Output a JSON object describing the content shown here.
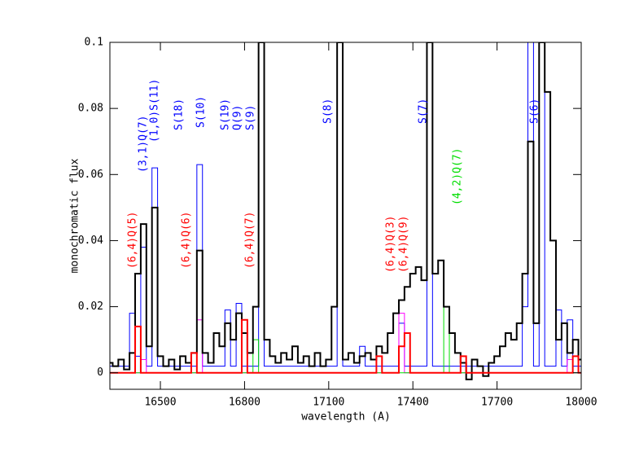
{
  "chart_data": {
    "type": "line",
    "xlabel": "wavelength (A)",
    "ylabel": "monochromatic flux",
    "xlim": [
      16320,
      18000
    ],
    "ylim": [
      -0.005,
      0.1
    ],
    "xticks": [
      16500,
      16800,
      17100,
      17400,
      17700,
      18000
    ],
    "yticks": [
      0,
      0.02,
      0.04,
      0.06,
      0.08,
      0.1
    ],
    "x": [
      16320,
      16340,
      16360,
      16380,
      16400,
      16420,
      16440,
      16460,
      16480,
      16500,
      16520,
      16540,
      16560,
      16580,
      16600,
      16620,
      16640,
      16660,
      16680,
      16700,
      16720,
      16740,
      16760,
      16780,
      16800,
      16820,
      16840,
      16860,
      16880,
      16900,
      16920,
      16940,
      16960,
      16980,
      17000,
      17020,
      17040,
      17060,
      17080,
      17100,
      17120,
      17140,
      17160,
      17180,
      17200,
      17220,
      17240,
      17260,
      17280,
      17300,
      17320,
      17340,
      17360,
      17380,
      17400,
      17420,
      17440,
      17460,
      17480,
      17500,
      17520,
      17540,
      17560,
      17580,
      17600,
      17620,
      17640,
      17660,
      17680,
      17700,
      17720,
      17740,
      17760,
      17780,
      17800,
      17820,
      17840,
      17860,
      17880,
      17900,
      17920,
      17940,
      17960,
      17980,
      18000
    ],
    "series": [
      {
        "color": "#0000ff",
        "values": [
          0.002,
          0.002,
          0.002,
          0.002,
          0.018,
          0.005,
          0.038,
          0.002,
          0.062,
          0.002,
          0.002,
          0.002,
          0.002,
          0.002,
          0.002,
          0.002,
          0.063,
          0.002,
          0.002,
          0.002,
          0.002,
          0.019,
          0.002,
          0.021,
          0.002,
          0.002,
          0.002,
          0.1,
          0.002,
          0.002,
          0.002,
          0.002,
          0.002,
          0.002,
          0.002,
          0.002,
          0.002,
          0.002,
          0.002,
          0.002,
          0.002,
          0.1,
          0.002,
          0.002,
          0.002,
          0.008,
          0.002,
          0.002,
          0.002,
          0.002,
          0.002,
          0.002,
          0.015,
          0.002,
          0.002,
          0.002,
          0.002,
          0.1,
          0.002,
          0.002,
          0.002,
          0.002,
          0.002,
          0.002,
          0.002,
          0.002,
          0.002,
          0.002,
          0.002,
          0.002,
          0.002,
          0.002,
          0.002,
          0.002,
          0.02,
          0.1,
          0.002,
          0.1,
          0.002,
          0.002,
          0.019,
          0.002,
          0.016,
          0.002,
          0.002
        ]
      },
      {
        "color": "#ff00ff",
        "values": [
          0,
          0,
          0,
          0,
          0,
          0,
          0.004,
          0,
          0,
          0,
          0,
          0,
          0,
          0,
          0,
          0,
          0.016,
          0,
          0,
          0,
          0,
          0,
          0,
          0,
          0,
          0,
          0,
          0,
          0,
          0,
          0,
          0,
          0,
          0,
          0,
          0,
          0,
          0,
          0,
          0,
          0,
          0,
          0,
          0,
          0,
          0,
          0,
          0,
          0,
          0,
          0,
          0,
          0.018,
          0,
          0,
          0,
          0,
          0,
          0,
          0,
          0,
          0,
          0,
          0,
          0,
          0,
          0,
          0,
          0,
          0,
          0,
          0,
          0,
          0,
          0,
          0,
          0,
          0,
          0,
          0,
          0,
          0,
          0.004,
          0,
          0
        ]
      },
      {
        "color": "#00dd00",
        "values": [
          0,
          0,
          0,
          0,
          0,
          0,
          0,
          0,
          0,
          0,
          0,
          0,
          0,
          0,
          0,
          0,
          0,
          0,
          0,
          0,
          0,
          0,
          0,
          0,
          0,
          0,
          0.01,
          0,
          0,
          0,
          0,
          0,
          0,
          0,
          0,
          0,
          0,
          0,
          0,
          0,
          0,
          0,
          0,
          0,
          0,
          0,
          0,
          0,
          0,
          0,
          0,
          0,
          0,
          0,
          0,
          0,
          0,
          0,
          0,
          0,
          0.02,
          0,
          0,
          0,
          0,
          0,
          0,
          0,
          0,
          0,
          0,
          0,
          0,
          0,
          0,
          0,
          0,
          0,
          0,
          0,
          0,
          0,
          0,
          0,
          0
        ]
      },
      {
        "color": "#000000",
        "values": [
          0.003,
          0.002,
          0.004,
          0.001,
          0.006,
          0.03,
          0.045,
          0.008,
          0.05,
          0.005,
          0.002,
          0.004,
          0.001,
          0.005,
          0.003,
          0.006,
          0.037,
          0.006,
          0.003,
          0.012,
          0.008,
          0.015,
          0.01,
          0.018,
          0.012,
          0.006,
          0.02,
          0.1,
          0.01,
          0.005,
          0.003,
          0.006,
          0.004,
          0.008,
          0.003,
          0.005,
          0.002,
          0.006,
          0.002,
          0.004,
          0.02,
          0.1,
          0.004,
          0.006,
          0.003,
          0.005,
          0.006,
          0.004,
          0.008,
          0.006,
          0.012,
          0.018,
          0.022,
          0.026,
          0.03,
          0.032,
          0.028,
          0.1,
          0.03,
          0.034,
          0.02,
          0.012,
          0.006,
          0.003,
          -0.002,
          0.004,
          0.002,
          -0.001,
          0.003,
          0.005,
          0.008,
          0.012,
          0.01,
          0.015,
          0.03,
          0.07,
          0.015,
          0.1,
          0.085,
          0.04,
          0.01,
          0.015,
          0.006,
          0.01,
          0.004
        ]
      },
      {
        "color": "#ff0000",
        "values": [
          0,
          0,
          0,
          0,
          0,
          0.014,
          0,
          0,
          0,
          0,
          0,
          0,
          0,
          0,
          0,
          0.006,
          0,
          0,
          0,
          0,
          0,
          0,
          0,
          0,
          0.016,
          0,
          0,
          0,
          0,
          0,
          0,
          0,
          0,
          0,
          0,
          0,
          0,
          0,
          0,
          0,
          0,
          0,
          0,
          0,
          0,
          0,
          0,
          0,
          0.005,
          0,
          0,
          0,
          0.008,
          0.012,
          0,
          0,
          0,
          0,
          0,
          0,
          0,
          0,
          0,
          0.005,
          0,
          0,
          0,
          0,
          0,
          0,
          0,
          0,
          0,
          0,
          0,
          0,
          0,
          0,
          0,
          0,
          0,
          0,
          0,
          0.005,
          0
        ]
      }
    ],
    "annotations": [
      {
        "text": "(6,4)Q(5)",
        "color": "#ff0000"
      },
      {
        "text": "(3,1)Q(7)",
        "color": "#0000ff"
      },
      {
        "text": "(1,0)S(11)",
        "color": "#0000ff"
      },
      {
        "text": "S(18)",
        "color": "#0000ff"
      },
      {
        "text": "(6,4)Q(6)",
        "color": "#ff0000"
      },
      {
        "text": "S(10)",
        "color": "#0000ff"
      },
      {
        "text": "S(19)",
        "color": "#0000ff"
      },
      {
        "text": "Q(9)",
        "color": "#0000ff"
      },
      {
        "text": "S(9)",
        "color": "#0000ff"
      },
      {
        "text": "(6,4)Q(7)",
        "color": "#ff0000"
      },
      {
        "text": "S(8)",
        "color": "#0000ff"
      },
      {
        "text": "(6,4)Q(3)",
        "color": "#ff0000"
      },
      {
        "text": "(6,4)Q(9)",
        "color": "#ff0000"
      },
      {
        "text": "S(7)",
        "color": "#0000ff"
      },
      {
        "text": "(4,2)Q(7)",
        "color": "#00dd00"
      },
      {
        "text": "S(6)",
        "color": "#0000ff"
      }
    ]
  }
}
